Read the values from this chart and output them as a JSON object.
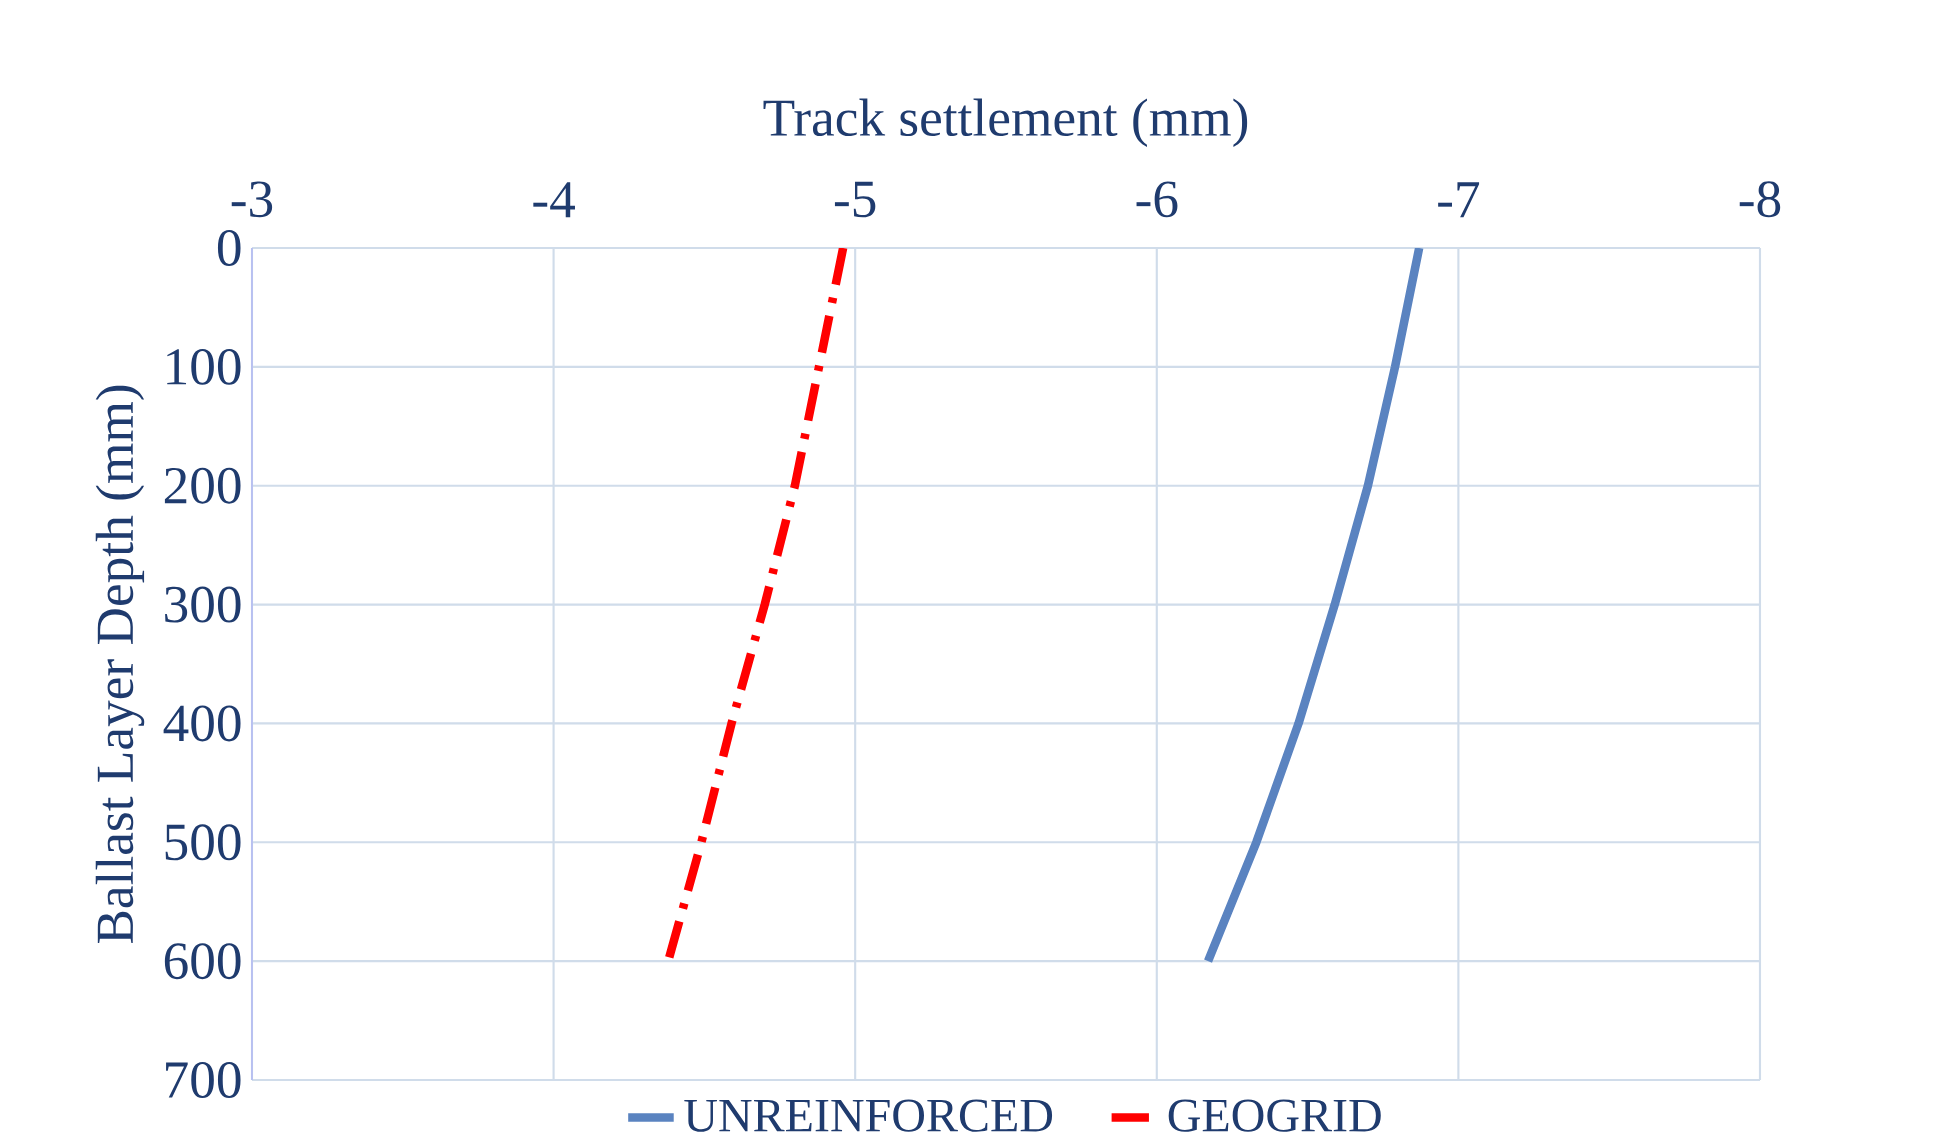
{
  "chart_data": {
    "type": "line",
    "xlabel": "Track settlement (mm)",
    "ylabel": "Ballast Layer Depth (mm)",
    "xlim": [
      -3,
      -8
    ],
    "xticks": [
      -3,
      -4,
      -5,
      -6,
      -7,
      -8
    ],
    "ylim": [
      700,
      0
    ],
    "yticks": [
      0,
      100,
      200,
      300,
      400,
      500,
      600,
      700
    ],
    "grid": true,
    "legend": "bottom",
    "marker": "none",
    "series": [
      {
        "name": "UNREINFORCED",
        "color": "#5a83c0",
        "line_style": "solid",
        "x": [
          -6.87,
          -6.79,
          -6.7,
          -6.59,
          -6.47,
          -6.33,
          -6.17
        ],
        "values": [
          0,
          100,
          200,
          300,
          400,
          500,
          600
        ]
      },
      {
        "name": "GEOGRID",
        "color": "#ff0000",
        "line_style": "dashdot",
        "x": [
          -4.96,
          -4.88,
          -4.8,
          -4.7,
          -4.59,
          -4.49,
          -4.38
        ],
        "values": [
          0,
          100,
          200,
          300,
          400,
          500,
          600
        ]
      }
    ]
  }
}
